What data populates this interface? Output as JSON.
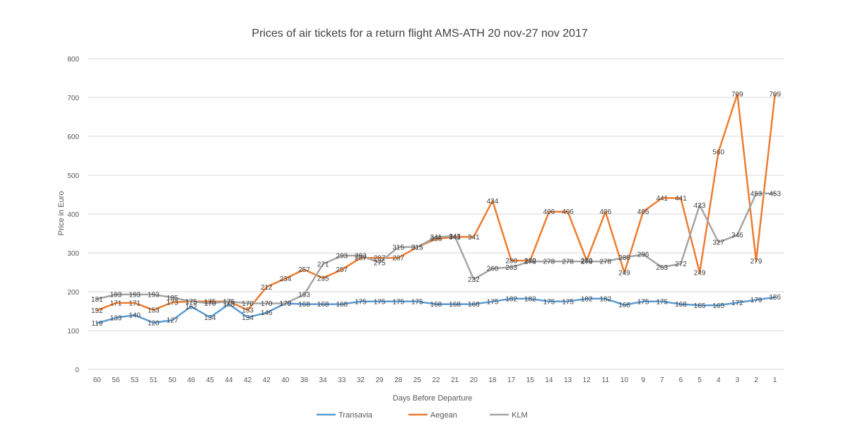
{
  "chart_data": {
    "type": "line",
    "title": "Prices of air tickets for a return flight AMS-ATH 20 nov-27 nov 2017",
    "xlabel": "Days Before Departure",
    "ylabel": "Price in Euro",
    "ylim": [
      0,
      800
    ],
    "yticks": [
      0,
      100,
      200,
      300,
      400,
      500,
      600,
      700,
      800
    ],
    "grid": true,
    "legend_position": "bottom",
    "categories": [
      "60",
      "56",
      "53",
      "51",
      "50",
      "46",
      "45",
      "44",
      "42",
      "42",
      "40",
      "38",
      "34",
      "33",
      "32",
      "29",
      "28",
      "25",
      "22",
      "21",
      "20",
      "18",
      "17",
      "15",
      "14",
      "13",
      "12",
      "11",
      "10",
      "9",
      "7",
      "6",
      "5",
      "4",
      "3",
      "2",
      "1"
    ],
    "series": [
      {
        "name": "Transavia",
        "color": "#5B9BD5",
        "values": [
          119,
          133,
          140,
          120,
          127,
          162,
          134,
          168,
          134,
          146,
          170,
          168,
          168,
          168,
          175,
          175,
          175,
          175,
          168,
          168,
          168,
          175,
          182,
          182,
          175,
          175,
          182,
          182,
          166,
          175,
          175,
          168,
          165,
          165,
          172,
          179,
          186
        ],
        "labels": [
          "119",
          "133",
          "140",
          "120",
          "127",
          "162",
          "134",
          "168",
          "134",
          "146",
          "170",
          "168",
          "168",
          "168",
          "175",
          "175",
          "175",
          "175",
          "168",
          "168",
          "168",
          "175",
          "182",
          "182",
          "175",
          "175",
          "182",
          "182",
          "166",
          "175",
          "175",
          "168",
          "165",
          "165",
          "172",
          "179",
          "186"
        ]
      },
      {
        "name": "Aegean",
        "color": "#ED7D31",
        "values": [
          152,
          171,
          171,
          153,
          173,
          175,
          175,
          175,
          153,
          212,
          234,
          257,
          235,
          257,
          287,
          287,
          287,
          315,
          336,
          341,
          341,
          434,
          280,
          280,
          406,
          406,
          280,
          406,
          249,
          406,
          441,
          441,
          249,
          560,
          709,
          279,
          709
        ],
        "labels": [
          "152",
          "171",
          "171",
          "153",
          "173",
          "175",
          "175",
          "175",
          "153",
          "212",
          "234",
          "257",
          "235",
          "257",
          "287",
          "287",
          "287",
          "315",
          "336",
          "341",
          "341",
          "434",
          "280",
          "280",
          "406",
          "406",
          "280",
          "406",
          "249",
          "406",
          "441",
          "441",
          "249",
          "560",
          "709",
          "279",
          "709"
        ]
      },
      {
        "name": "KLM",
        "color": "#A5A5A5",
        "values": [
          181,
          193,
          193,
          193,
          185,
          175,
          170,
          175,
          170,
          170,
          170,
          193,
          271,
          293,
          293,
          275,
          315,
          315,
          341,
          343,
          232,
          260,
          263,
          278,
          278,
          278,
          278,
          278,
          288,
          296,
          263,
          272,
          423,
          327,
          346,
          453,
          453
        ],
        "labels": [
          "181",
          "193",
          "193",
          "193",
          "185",
          "175",
          "170",
          "175",
          "170",
          "170",
          "170",
          "193",
          "271",
          "293",
          "293",
          "275",
          "315",
          "315",
          "341",
          "343",
          "232",
          "260",
          "263",
          "278",
          "278",
          "278",
          "278",
          "278",
          "288",
          "296",
          "263",
          "272",
          "423",
          "327",
          "346",
          "453",
          "453"
        ]
      }
    ]
  }
}
